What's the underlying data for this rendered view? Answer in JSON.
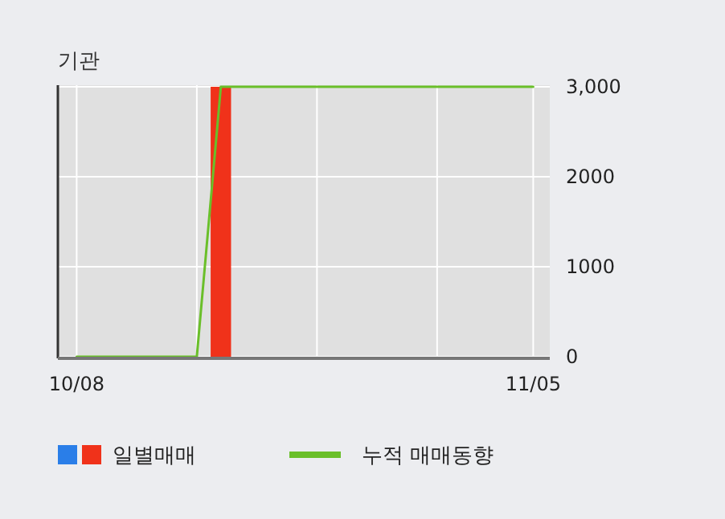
{
  "chart_data": {
    "type": "bar",
    "title": "기관",
    "categories": [
      "10/08",
      null,
      null,
      null,
      null,
      null,
      null,
      null,
      null,
      null,
      null,
      null,
      null,
      null,
      null,
      null,
      null,
      null,
      null,
      "11/05"
    ],
    "series": [
      {
        "name": "일별매매",
        "color": "#f0321a",
        "values": [
          0,
          0,
          0,
          0,
          0,
          0,
          3000,
          0,
          0,
          0,
          0,
          0,
          0,
          0,
          0,
          0,
          0,
          0,
          0,
          0
        ]
      },
      {
        "name": "누적 매매동향",
        "type": "line",
        "color": "#6abf2a",
        "values": [
          0,
          0,
          0,
          0,
          0,
          0,
          3000,
          3000,
          3000,
          3000,
          3000,
          3000,
          3000,
          3000,
          3000,
          3000,
          3000,
          3000,
          3000,
          3000
        ]
      }
    ],
    "ylim": [
      0,
      3000
    ],
    "yticks": [
      0,
      1000,
      2000,
      {
        "value": 3000,
        "label": "3,000"
      }
    ],
    "grid": true,
    "legend": "bottom left"
  }
}
